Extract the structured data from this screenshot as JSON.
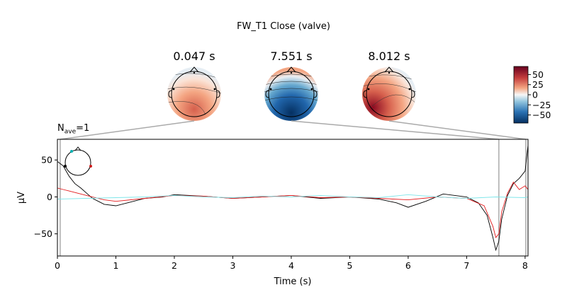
{
  "title": "FW_T1 Close (valve)",
  "nave": {
    "prefix": "N",
    "sub": "ave",
    "suffix": "=1"
  },
  "topomaps": [
    {
      "time_label": "0.047 s",
      "time": 0.047,
      "pattern": "posterior-positive"
    },
    {
      "time_label": "7.551 s",
      "time": 7.551,
      "pattern": "strong-negative"
    },
    {
      "time_label": "8.012 s",
      "time": 8.012,
      "pattern": "left-positive"
    }
  ],
  "colorbar": {
    "range": [
      -70,
      70
    ],
    "ticks": [
      "50",
      "25",
      "0",
      "−25",
      "−50"
    ],
    "tick_values": [
      50,
      25,
      0,
      -25,
      -50
    ],
    "colors": {
      "top": "#67001f",
      "mid": "#f7f7f7",
      "bottom": "#053061"
    }
  },
  "chart_data": {
    "type": "line",
    "xlabel": "Time (s)",
    "ylabel": "μV",
    "xlim": [
      0,
      8.05
    ],
    "ylim": [
      -80,
      78
    ],
    "xticks": [
      0,
      1,
      2,
      3,
      4,
      5,
      6,
      7,
      8
    ],
    "yticks": [
      50,
      0,
      -50
    ],
    "xtick_labels": [
      "0",
      "1",
      "2",
      "3",
      "4",
      "5",
      "6",
      "7",
      "8"
    ],
    "ytick_labels": [
      "50",
      "0",
      "−50"
    ],
    "series": [
      {
        "color": "#000000",
        "x": [
          0,
          0.1,
          0.2,
          0.3,
          0.4,
          0.5,
          0.6,
          0.7,
          0.8,
          1.0,
          1.2,
          1.5,
          1.8,
          2.0,
          2.5,
          3.0,
          3.5,
          4.0,
          4.5,
          5.0,
          5.5,
          5.8,
          6.0,
          6.3,
          6.6,
          7.0,
          7.2,
          7.35,
          7.45,
          7.5,
          7.55,
          7.6,
          7.7,
          7.8,
          7.9,
          8.0,
          8.05
        ],
        "y": [
          48,
          42,
          28,
          18,
          12,
          5,
          -2,
          -6,
          -10,
          -12,
          -8,
          -2,
          0,
          3,
          1,
          -2,
          0,
          2,
          -2,
          0,
          -3,
          -8,
          -14,
          -6,
          4,
          0,
          -8,
          -25,
          -55,
          -72,
          -60,
          -30,
          2,
          18,
          25,
          35,
          70
        ]
      },
      {
        "color": "#e41a1c",
        "x": [
          0,
          0.1,
          0.2,
          0.3,
          0.4,
          0.5,
          0.6,
          0.8,
          1.0,
          1.5,
          2.0,
          2.5,
          3.0,
          3.5,
          4.0,
          4.5,
          5.0,
          5.5,
          6.0,
          6.5,
          7.0,
          7.3,
          7.45,
          7.5,
          7.55,
          7.6,
          7.7,
          7.8,
          7.9,
          8.0,
          8.05
        ],
        "y": [
          12,
          10,
          8,
          6,
          4,
          2,
          0,
          -4,
          -6,
          -2,
          2,
          1,
          -2,
          0,
          2,
          -1,
          0,
          -2,
          -4,
          0,
          -2,
          -12,
          -40,
          -55,
          -50,
          -20,
          5,
          20,
          10,
          15,
          10
        ]
      },
      {
        "color": "#7fe6ea",
        "x": [
          0,
          0.5,
          1.0,
          1.5,
          2.0,
          2.5,
          3.0,
          3.5,
          4.0,
          4.5,
          5.0,
          5.5,
          6.0,
          6.5,
          7.0,
          7.5,
          8.0,
          8.05
        ],
        "y": [
          -3,
          -2,
          -1,
          0,
          2,
          0,
          -1,
          1,
          0,
          2,
          0,
          -1,
          3,
          0,
          -2,
          0,
          -1,
          0
        ]
      }
    ],
    "vlines": [
      0.047,
      7.551,
      8.012
    ]
  },
  "sensor_inset": {
    "markers": [
      {
        "color": "#00b3b3"
      },
      {
        "color": "#000000"
      },
      {
        "color": "#d01c1c"
      }
    ]
  }
}
